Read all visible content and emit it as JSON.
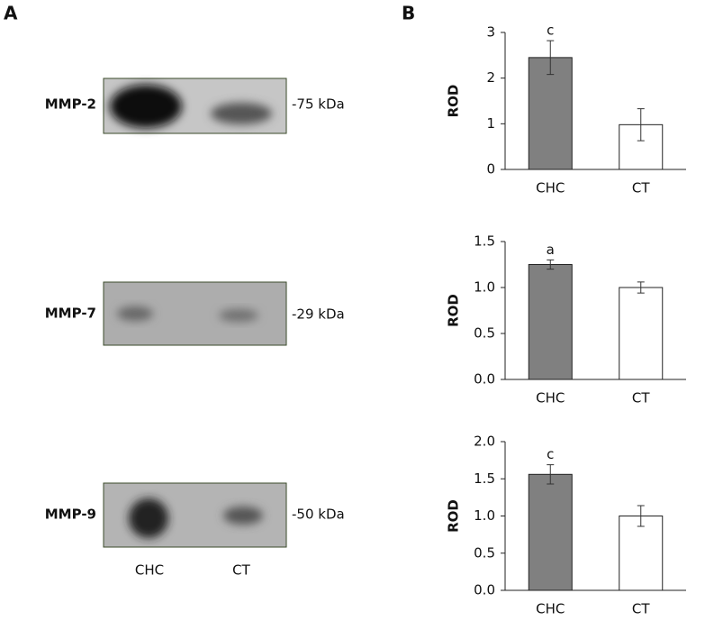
{
  "panel_labels": [
    "A",
    "B"
  ],
  "blots": [
    {
      "label": "MMP-2",
      "size": "-75 kDa"
    },
    {
      "label": "MMP-7",
      "size": "-29 kDa"
    },
    {
      "label": "MMP-9",
      "size": "-50 kDa"
    }
  ],
  "blot_lanes": [
    "CHC",
    "CT"
  ],
  "chart_data": [
    {
      "type": "bar",
      "ylabel": "ROD",
      "categories": [
        "CHC",
        "CT"
      ],
      "values": [
        2.45,
        0.98
      ],
      "errors": [
        0.37,
        0.35
      ],
      "colors": [
        "#808080",
        "#ffffff"
      ],
      "annotations": [
        "c",
        null
      ],
      "ylim": [
        0,
        3
      ],
      "yticks": [
        0,
        1,
        2,
        3
      ]
    },
    {
      "type": "bar",
      "ylabel": "ROD",
      "categories": [
        "CHC",
        "CT"
      ],
      "values": [
        1.25,
        1.0
      ],
      "errors": [
        0.05,
        0.06
      ],
      "colors": [
        "#808080",
        "#ffffff"
      ],
      "annotations": [
        "a",
        null
      ],
      "ylim": [
        0,
        1.5
      ],
      "yticks": [
        {
          "value": 0,
          "label": "0.0"
        },
        {
          "value": 0.5,
          "label": "0.5"
        },
        {
          "value": 1,
          "label": "1.0"
        },
        {
          "value": 1.5,
          "label": "1.5"
        }
      ]
    },
    {
      "type": "bar",
      "ylabel": "ROD",
      "categories": [
        "CHC",
        "CT"
      ],
      "values": [
        1.56,
        1.0
      ],
      "errors": [
        0.13,
        0.14
      ],
      "colors": [
        "#808080",
        "#ffffff"
      ],
      "annotations": [
        "c",
        null
      ],
      "ylim": [
        0,
        2
      ],
      "yticks": [
        {
          "value": 0,
          "label": "0.0"
        },
        {
          "value": 0.5,
          "label": "0.5"
        },
        {
          "value": 1,
          "label": "1.0"
        },
        {
          "value": 1.5,
          "label": "1.5"
        },
        {
          "value": 2,
          "label": "2.0"
        }
      ]
    }
  ]
}
